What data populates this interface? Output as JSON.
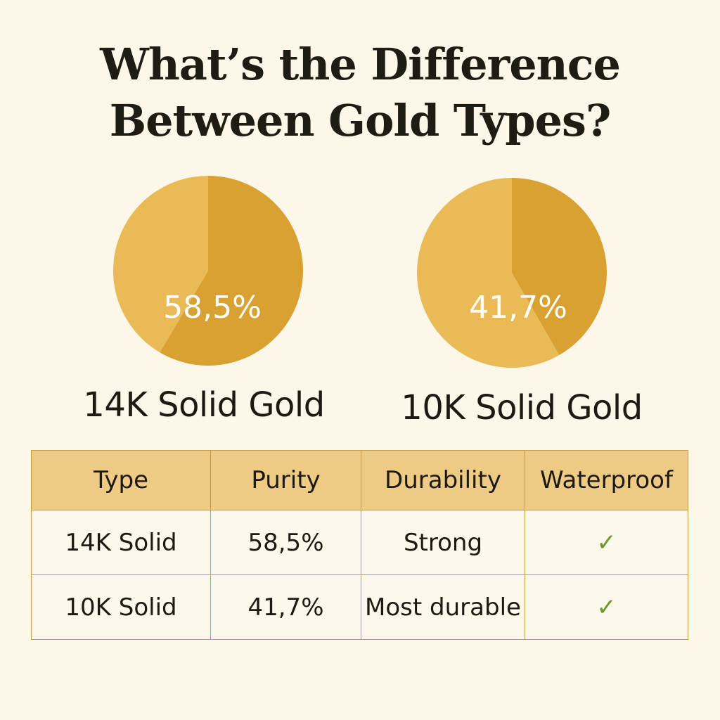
{
  "title": [
    "What’s the Difference",
    "Between Gold Types?"
  ],
  "colors": {
    "background": "#FDF7E9",
    "gold": "#D9A032",
    "light_gold": "#E9BA56",
    "header": "#EDCB85",
    "check": "#6A9A2C"
  },
  "chart_data": [
    {
      "type": "pie",
      "title": "14K Solid Gold",
      "data_label": "58,5%",
      "values": [
        58.5,
        41.5
      ]
    },
    {
      "type": "pie",
      "title": "10K Solid Gold",
      "data_label": "41,7%",
      "values": [
        41.7,
        58.3
      ]
    }
  ],
  "table": {
    "headers": [
      "Type",
      "Purity",
      "Durability",
      "Waterproof"
    ],
    "rows": [
      [
        "14K Solid",
        "58,5%",
        "Strong",
        "✓"
      ],
      [
        "10K Solid",
        "41,7%",
        "Most durable",
        "✓"
      ]
    ],
    "check_icon": "check-icon"
  }
}
